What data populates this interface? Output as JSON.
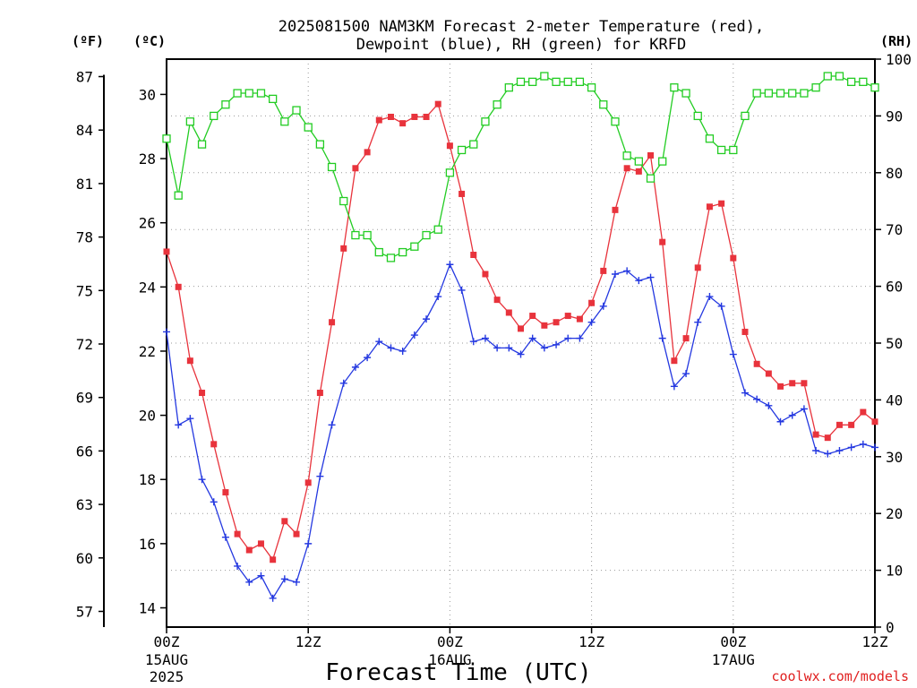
{
  "chart_data": {
    "type": "line",
    "title_line1": "2025081500 NAM3KM Forecast 2-meter Temperature (red),",
    "title_line2": "Dewpoint (blue), RH (green) for KRFD",
    "xlabel": "Forecast Time (UTC)",
    "credit": "coolwx.com/models",
    "unit_f": "(ºF)",
    "unit_c": "(ºC)",
    "unit_rh": "(RH)",
    "x_hours": [
      0,
      1,
      2,
      3,
      4,
      5,
      6,
      7,
      8,
      9,
      10,
      11,
      12,
      13,
      14,
      15,
      16,
      17,
      18,
      19,
      20,
      21,
      22,
      23,
      24,
      25,
      26,
      27,
      28,
      29,
      30,
      31,
      32,
      33,
      34,
      35,
      36,
      37,
      38,
      39,
      40,
      41,
      42,
      43,
      44,
      45,
      46,
      47,
      48,
      49,
      50,
      51,
      52,
      53,
      54,
      55,
      56,
      57,
      58,
      59,
      60
    ],
    "x_ticks": [
      {
        "hour": 0,
        "label": "00Z",
        "sub1": "15AUG",
        "sub2": "2025"
      },
      {
        "hour": 12,
        "label": "12Z",
        "sub1": "",
        "sub2": ""
      },
      {
        "hour": 24,
        "label": "00Z",
        "sub1": "16AUG",
        "sub2": ""
      },
      {
        "hour": 36,
        "label": "12Z",
        "sub1": "",
        "sub2": ""
      },
      {
        "hour": 48,
        "label": "00Z",
        "sub1": "17AUG",
        "sub2": ""
      },
      {
        "hour": 60,
        "label": "12Z",
        "sub1": "",
        "sub2": ""
      }
    ],
    "xlim": [
      0,
      60
    ],
    "ylim_c": [
      13.4,
      31.1
    ],
    "ylim_rh": [
      0,
      100
    ],
    "yticks_c": [
      14,
      16,
      18,
      20,
      22,
      24,
      26,
      28,
      30
    ],
    "yticks_f": [
      57,
      60,
      63,
      66,
      69,
      72,
      75,
      78,
      81,
      84,
      87
    ],
    "yticks_rh": [
      0,
      10,
      20,
      30,
      40,
      50,
      60,
      70,
      80,
      90,
      100
    ],
    "grid": true,
    "series": [
      {
        "name": "Temperature",
        "color": "#e8333c",
        "marker": "filled-square",
        "values": [
          25.1,
          24.0,
          21.7,
          20.7,
          19.1,
          17.6,
          16.3,
          15.8,
          16.0,
          15.5,
          16.7,
          16.3,
          17.9,
          20.7,
          22.9,
          25.2,
          27.7,
          28.2,
          29.2,
          29.3,
          29.1,
          29.3,
          29.3,
          29.7,
          28.4,
          26.9,
          25.0,
          24.4,
          23.6,
          23.2,
          22.7,
          23.1,
          22.8,
          22.9,
          23.1,
          23.0,
          23.5,
          24.5,
          26.4,
          27.7,
          27.6,
          28.1,
          25.4,
          21.7,
          22.4,
          24.6,
          26.5,
          26.6,
          24.9,
          22.6,
          21.6,
          21.3,
          20.9,
          21.0,
          21.0,
          19.4,
          19.3,
          19.7,
          19.7,
          20.1,
          19.8
        ]
      },
      {
        "name": "Dewpoint",
        "color": "#2438e0",
        "marker": "plus",
        "values": [
          22.6,
          19.7,
          19.9,
          18.0,
          17.3,
          16.2,
          15.3,
          14.8,
          15.0,
          14.3,
          14.9,
          14.8,
          16.0,
          18.1,
          19.7,
          21.0,
          21.5,
          21.8,
          22.3,
          22.1,
          22.0,
          22.5,
          23.0,
          23.7,
          24.7,
          23.9,
          22.3,
          22.4,
          22.1,
          22.1,
          21.9,
          22.4,
          22.1,
          22.2,
          22.4,
          22.4,
          22.9,
          23.4,
          24.4,
          24.5,
          24.2,
          24.3,
          22.4,
          20.9,
          21.3,
          22.9,
          23.7,
          23.4,
          21.9,
          20.7,
          20.5,
          20.3,
          19.8,
          20.0,
          20.2,
          18.9,
          18.8,
          18.9,
          19.0,
          19.1,
          19.0
        ]
      },
      {
        "name": "RH",
        "color": "#22cc22",
        "marker": "open-square",
        "values": [
          86,
          76,
          89,
          85,
          90,
          92,
          94,
          94,
          94,
          93,
          89,
          91,
          88,
          85,
          81,
          75,
          69,
          69,
          66,
          65,
          66,
          67,
          69,
          70,
          80,
          84,
          85,
          89,
          92,
          95,
          96,
          96,
          97,
          96,
          96,
          96,
          95,
          92,
          89,
          83,
          82,
          79,
          82,
          95,
          94,
          90,
          86,
          84,
          84,
          90,
          94,
          94,
          94,
          94,
          94,
          95,
          97,
          97,
          96,
          96,
          95
        ]
      }
    ]
  }
}
